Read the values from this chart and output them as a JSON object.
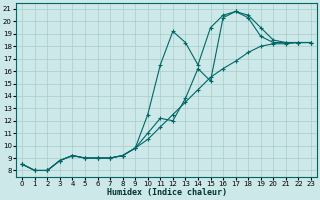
{
  "xlabel": "Humidex (Indice chaleur)",
  "bg_color": "#cce8e8",
  "grid_color": "#aacccc",
  "line_color": "#006666",
  "xlim": [
    -0.5,
    23.5
  ],
  "ylim": [
    7.5,
    21.5
  ],
  "xticks": [
    0,
    1,
    2,
    3,
    4,
    5,
    6,
    7,
    8,
    9,
    10,
    11,
    12,
    13,
    14,
    15,
    16,
    17,
    18,
    19,
    20,
    21,
    22,
    23
  ],
  "yticks": [
    8,
    9,
    10,
    11,
    12,
    13,
    14,
    15,
    16,
    17,
    18,
    19,
    20,
    21
  ],
  "line1_x": [
    0,
    1,
    2,
    3,
    4,
    5,
    6,
    7,
    8,
    9,
    10,
    11,
    12,
    13,
    14,
    15,
    16,
    17,
    18,
    19,
    20,
    21,
    22,
    23
  ],
  "line1_y": [
    8.5,
    8.0,
    8.0,
    8.8,
    9.2,
    9.0,
    9.0,
    9.0,
    9.2,
    9.8,
    10.5,
    11.5,
    12.5,
    13.5,
    14.5,
    15.5,
    16.2,
    16.8,
    17.5,
    18.0,
    18.2,
    18.2,
    18.3,
    18.3
  ],
  "line2_x": [
    0,
    1,
    2,
    3,
    4,
    5,
    6,
    7,
    8,
    9,
    10,
    11,
    12,
    13,
    14,
    15,
    16,
    17,
    18,
    19,
    20,
    21,
    22,
    23
  ],
  "line2_y": [
    8.5,
    8.0,
    8.0,
    8.8,
    9.2,
    9.0,
    9.0,
    9.0,
    9.2,
    9.8,
    12.5,
    16.5,
    19.2,
    18.3,
    16.5,
    19.5,
    20.5,
    20.8,
    20.3,
    18.8,
    18.3,
    18.3,
    18.3,
    18.3
  ],
  "line3_x": [
    0,
    1,
    2,
    3,
    4,
    5,
    6,
    7,
    8,
    9,
    10,
    11,
    12,
    13,
    14,
    15,
    16,
    17,
    18,
    19,
    20,
    21,
    22,
    23
  ],
  "line3_y": [
    8.5,
    8.0,
    8.0,
    8.8,
    9.2,
    9.0,
    9.0,
    9.0,
    9.2,
    9.8,
    11.0,
    12.2,
    12.0,
    13.8,
    16.2,
    15.2,
    20.3,
    20.8,
    20.5,
    19.5,
    18.5,
    18.3,
    18.3,
    18.3
  ]
}
